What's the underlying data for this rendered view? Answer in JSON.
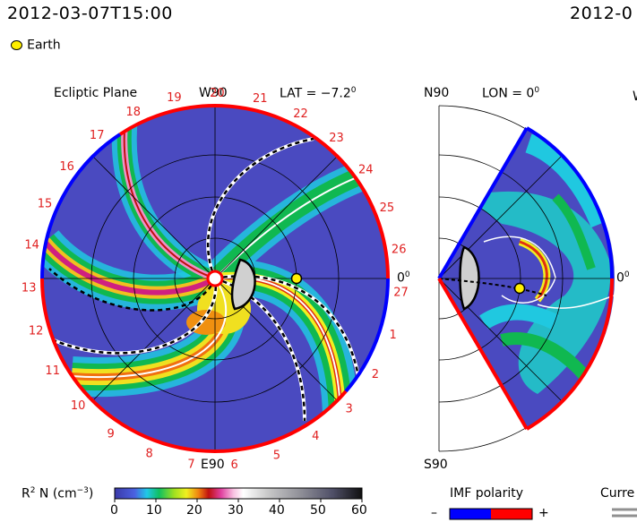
{
  "timestamp_left": "2012-03-07T15:00",
  "timestamp_right": "2012-0",
  "legend": {
    "earth_label": "Earth",
    "earth_color": "#ffee00"
  },
  "left_panel": {
    "title": "Ecliptic Plane",
    "top_label": "W90",
    "bottom_label": "E90",
    "right_label": "0",
    "right_label_sup": "0",
    "lat_label": "LAT = −7.2",
    "lat_sup": "0",
    "sector_numbers": [
      "1",
      "2",
      "3",
      "4",
      "5",
      "6",
      "7",
      "8",
      "9",
      "10",
      "11",
      "12",
      "13",
      "14",
      "15",
      "16",
      "17",
      "18",
      "19",
      "20",
      "21",
      "22",
      "23",
      "24",
      "25",
      "26",
      "27"
    ]
  },
  "right_panel": {
    "top_label": "N90",
    "bottom_label": "S90",
    "lon_label": "LON = 0",
    "lon_sup": "0",
    "right_label": "0",
    "right_label_sup": "0",
    "clipped_letter": "W"
  },
  "colorbar": {
    "label": "R",
    "label_sup": "2",
    "label_rest": " N (cm",
    "label_unit_sup": "−3",
    "label_close": ")",
    "ticks": [
      "0",
      "10",
      "20",
      "30",
      "40",
      "50",
      "60"
    ],
    "colors": [
      "#3a3aa8",
      "#4b4bd0",
      "#5a78e8",
      "#21c8e8",
      "#20e0c0",
      "#10c060",
      "#30d030",
      "#9ee020",
      "#f0f020",
      "#f0c020",
      "#f08010",
      "#e03010",
      "#c01010",
      "#d02080",
      "#f070c0",
      "#f8b0e0",
      "#ffffff",
      "#dcdcdc",
      "#bcbcbc",
      "#a0a0a0",
      "#8a8a9a",
      "#70708a",
      "#585870",
      "#404050",
      "#282830",
      "#101010"
    ]
  },
  "imf": {
    "title": "IMF polarity",
    "minus": "–",
    "plus": "+",
    "neg_color": "#0000ff",
    "pos_color": "#ff0000"
  },
  "current_sheet": {
    "label": "Curre"
  }
}
